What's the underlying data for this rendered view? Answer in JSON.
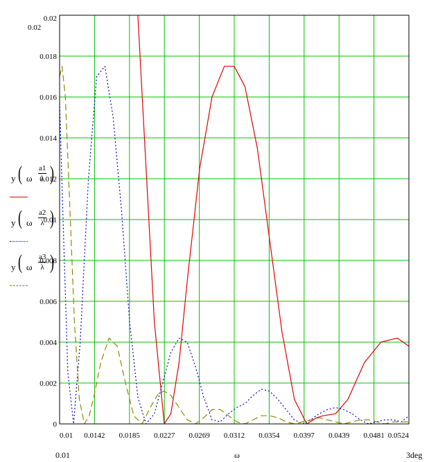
{
  "chart_data": {
    "type": "line",
    "xlabel": "ω",
    "x_range_labels": {
      "min": "0.01",
      "max": "3deg"
    },
    "xlim": [
      0.01,
      0.0524
    ],
    "ylim": [
      0,
      0.02
    ],
    "x_ticks": [
      "0.01",
      "0.0142",
      "0.0185",
      "0.0227",
      "0.0269",
      "0.0312",
      "0.0354",
      "0.0397",
      "0.0439",
      "0.0481",
      "0.0524"
    ],
    "y_ticks": [
      "0",
      "0.002",
      "0.004",
      "0.006",
      "0.008",
      "0.01",
      "0.012",
      "0.014",
      "0.016",
      "0.018",
      "0.02"
    ],
    "y_max_label_outside": "0.02",
    "grid": true,
    "grid_color": "#00c000",
    "legend_placement": "left",
    "series": [
      {
        "expr": "y",
        "arg": "ω",
        "num": "a1",
        "den": "λ",
        "color": "#e00000",
        "dash": "solid",
        "x": [
          0.0195,
          0.0205,
          0.0215,
          0.0227,
          0.0235,
          0.0245,
          0.0255,
          0.027,
          0.0285,
          0.03,
          0.0312,
          0.0325,
          0.034,
          0.0355,
          0.037,
          0.0385,
          0.04,
          0.0412,
          0.042,
          0.0435,
          0.045,
          0.047,
          0.049,
          0.051,
          0.0524
        ],
        "y": [
          0.02,
          0.0125,
          0.005,
          0.0,
          0.0005,
          0.003,
          0.007,
          0.0125,
          0.016,
          0.0175,
          0.0175,
          0.0165,
          0.0135,
          0.009,
          0.0045,
          0.0012,
          0.0,
          0.0003,
          0.0004,
          0.0005,
          0.0012,
          0.003,
          0.004,
          0.0042,
          0.0038
        ]
      },
      {
        "expr": "y",
        "arg": "ω",
        "num": "a2",
        "den": "λ",
        "color": "#0000d0",
        "dash": "dotted",
        "x": [
          0.01,
          0.0105,
          0.011,
          0.0117,
          0.0125,
          0.0135,
          0.0145,
          0.0155,
          0.0165,
          0.0175,
          0.0185,
          0.0195,
          0.0205,
          0.0215,
          0.0225,
          0.0235,
          0.0245,
          0.0255,
          0.0265,
          0.0275,
          0.0285,
          0.0295,
          0.0305,
          0.0315,
          0.0325,
          0.0335,
          0.0345,
          0.0355,
          0.0365,
          0.0375,
          0.0385,
          0.0395,
          0.0405,
          0.0415,
          0.0425,
          0.0435,
          0.0445,
          0.0455,
          0.0465,
          0.0475,
          0.0485,
          0.0495,
          0.0505,
          0.0515,
          0.0524
        ],
        "y": [
          0.0157,
          0.009,
          0.0025,
          0.0,
          0.004,
          0.012,
          0.017,
          0.0175,
          0.015,
          0.0105,
          0.005,
          0.0013,
          0.0,
          0.0005,
          0.002,
          0.0035,
          0.0042,
          0.004,
          0.0028,
          0.0013,
          0.0002,
          0.0001,
          0.0005,
          0.0008,
          0.001,
          0.0014,
          0.0017,
          0.0016,
          0.0012,
          0.0007,
          0.0002,
          0.0,
          0.0002,
          0.0005,
          0.0007,
          0.0008,
          0.0007,
          0.0005,
          0.0002,
          0.0,
          0.0001,
          0.0002,
          0.0002,
          0.0001,
          0.0004
        ]
      },
      {
        "expr": "y",
        "arg": "ω",
        "num": "a3",
        "den": "λ",
        "color": "#8a8a00",
        "dash": "dashed",
        "x": [
          0.01,
          0.0103,
          0.0107,
          0.0112,
          0.0118,
          0.0124,
          0.013,
          0.0136,
          0.0142,
          0.015,
          0.016,
          0.017,
          0.018,
          0.019,
          0.02,
          0.021,
          0.022,
          0.0227,
          0.0235,
          0.0245,
          0.0255,
          0.0265,
          0.0275,
          0.0285,
          0.0295,
          0.0305,
          0.0315,
          0.0325,
          0.0335,
          0.0345,
          0.0355,
          0.0365,
          0.0375,
          0.0385,
          0.0395,
          0.0405,
          0.0415,
          0.0425,
          0.0435,
          0.0445,
          0.0455,
          0.0465,
          0.0475,
          0.0485,
          0.0495,
          0.0505,
          0.0515,
          0.0524
        ],
        "y": [
          0.017,
          0.0175,
          0.016,
          0.011,
          0.005,
          0.0012,
          0.0,
          0.0004,
          0.0014,
          0.003,
          0.0042,
          0.0038,
          0.002,
          0.0004,
          0.0,
          0.0008,
          0.0015,
          0.0016,
          0.0014,
          0.0008,
          0.0002,
          0.0,
          0.0003,
          0.0007,
          0.0007,
          0.0004,
          0.0001,
          0.0,
          0.0002,
          0.0004,
          0.0004,
          0.0003,
          0.0001,
          0.0,
          0.0001,
          0.0002,
          0.0003,
          0.0002,
          0.0001,
          0.0,
          0.0001,
          0.0002,
          0.0002,
          0.0001,
          0.0,
          0.0001,
          0.0001,
          0.0001
        ]
      }
    ]
  }
}
